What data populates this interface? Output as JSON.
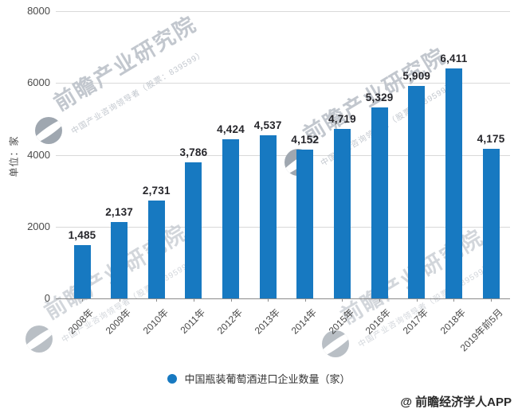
{
  "watermark": {
    "main_text": "前瞻产业研究院",
    "sub_text": "中国产业咨询领导者（股票：839599）"
  },
  "y_axis": {
    "title": "单位：家"
  },
  "legend": {
    "label": "中国瓶装葡萄酒进口企业数量（家）"
  },
  "credit": "@ 前瞻经济学人APP",
  "chart_data": {
    "type": "bar",
    "categories": [
      "2008年",
      "2009年",
      "2010年",
      "2011年",
      "2012年",
      "2013年",
      "2014年",
      "2015年",
      "2016年",
      "2017年",
      "2018年",
      "2019年前5月"
    ],
    "values": [
      1485,
      2137,
      2731,
      3786,
      4424,
      4537,
      4152,
      4719,
      5329,
      5909,
      6411,
      4175
    ],
    "value_labels": [
      "1,485",
      "2,137",
      "2,731",
      "3,786",
      "4,424",
      "4,537",
      "4,152",
      "4,719",
      "5,329",
      "5,909",
      "6,411",
      "4,175"
    ],
    "title": "",
    "xlabel": "",
    "ylabel": "单位：家",
    "ylim": [
      0,
      8000
    ],
    "yticks": [
      0,
      2000,
      4000,
      6000,
      8000
    ],
    "grid": true,
    "legend_position": "bottom",
    "bar_color": "#1779c1"
  }
}
